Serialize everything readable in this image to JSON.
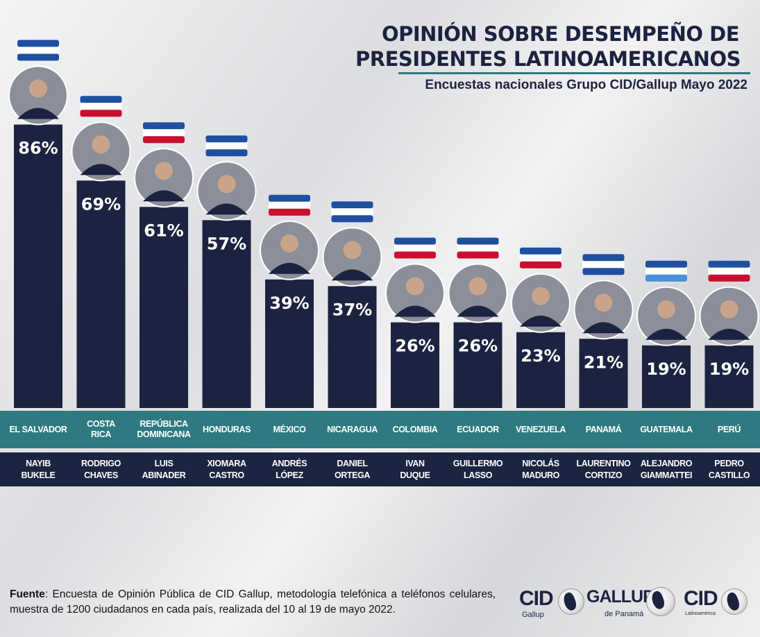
{
  "chart_data": {
    "type": "bar",
    "title": "OPINIÓN SOBRE DESEMPEÑO DE PRESIDENTES LATINOAMERICANOS",
    "title_lines": [
      "OPINIÓN SOBRE DESEMPEÑO DE",
      "PRESIDENTES LATINOAMERICANOS"
    ],
    "subtitle": "Encuestas nacionales Grupo CID/Gallup Mayo 2022",
    "categories": [
      {
        "country": [
          "EL SALVADOR"
        ],
        "president": [
          "NAYIB",
          "BUKELE"
        ]
      },
      {
        "country": [
          "COSTA",
          "RICA"
        ],
        "president": [
          "RODRIGO",
          "CHAVES"
        ]
      },
      {
        "country": [
          "REPÚBLICA",
          "DOMINICANA"
        ],
        "president": [
          "LUIS",
          "ABINADER"
        ]
      },
      {
        "country": [
          "HONDURAS"
        ],
        "president": [
          "XIOMARA",
          "CASTRO"
        ]
      },
      {
        "country": [
          "MÉXICO"
        ],
        "president": [
          "ANDRÉS",
          "LÓPEZ"
        ]
      },
      {
        "country": [
          "NICARAGUA"
        ],
        "president": [
          "DANIEL",
          "ORTEGA"
        ]
      },
      {
        "country": [
          "COLOMBIA"
        ],
        "president": [
          "IVAN",
          "DUQUE"
        ]
      },
      {
        "country": [
          "ECUADOR"
        ],
        "president": [
          "GUILLERMO",
          "LASSO"
        ]
      },
      {
        "country": [
          "VENEZUELA"
        ],
        "president": [
          "NICOLÁS",
          "MADURO"
        ]
      },
      {
        "country": [
          "PANAMÁ"
        ],
        "president": [
          "LAURENTINO",
          "CORTIZO"
        ]
      },
      {
        "country": [
          "GUATEMALA"
        ],
        "president": [
          "ALEJANDRO",
          "GIAMMATTEI"
        ]
      },
      {
        "country": [
          "PERÚ"
        ],
        "president": [
          "PEDRO",
          "CASTILLO"
        ]
      }
    ],
    "values": [
      86,
      69,
      61,
      57,
      39,
      37,
      26,
      26,
      23,
      21,
      19,
      19
    ],
    "value_labels": [
      "86%",
      "69%",
      "61%",
      "57%",
      "39%",
      "37%",
      "26%",
      "26%",
      "23%",
      "21%",
      "19%",
      "19%"
    ],
    "unit": "%",
    "ylim": [
      0,
      100
    ],
    "grid": false,
    "colors": {
      "bar": "#1c2340",
      "country_band": "#2e7a80",
      "president_band": "#1b2440",
      "label_text": "#ffffff"
    }
  },
  "footer": {
    "label": "Fuente",
    "text": ": Encuesta de Opinión Pública de CID Gallup, metodología telefónica a teléfonos celulares, muestra de 1200 ciudadanos en cada país, realizada del 10 al 19 de mayo 2022."
  },
  "logos": [
    {
      "main": "CID",
      "sub": "Gallup"
    },
    {
      "main": "GALLUP",
      "sub": "de Panamá"
    },
    {
      "main": "CID",
      "sub": "Latinoamérica"
    }
  ]
}
